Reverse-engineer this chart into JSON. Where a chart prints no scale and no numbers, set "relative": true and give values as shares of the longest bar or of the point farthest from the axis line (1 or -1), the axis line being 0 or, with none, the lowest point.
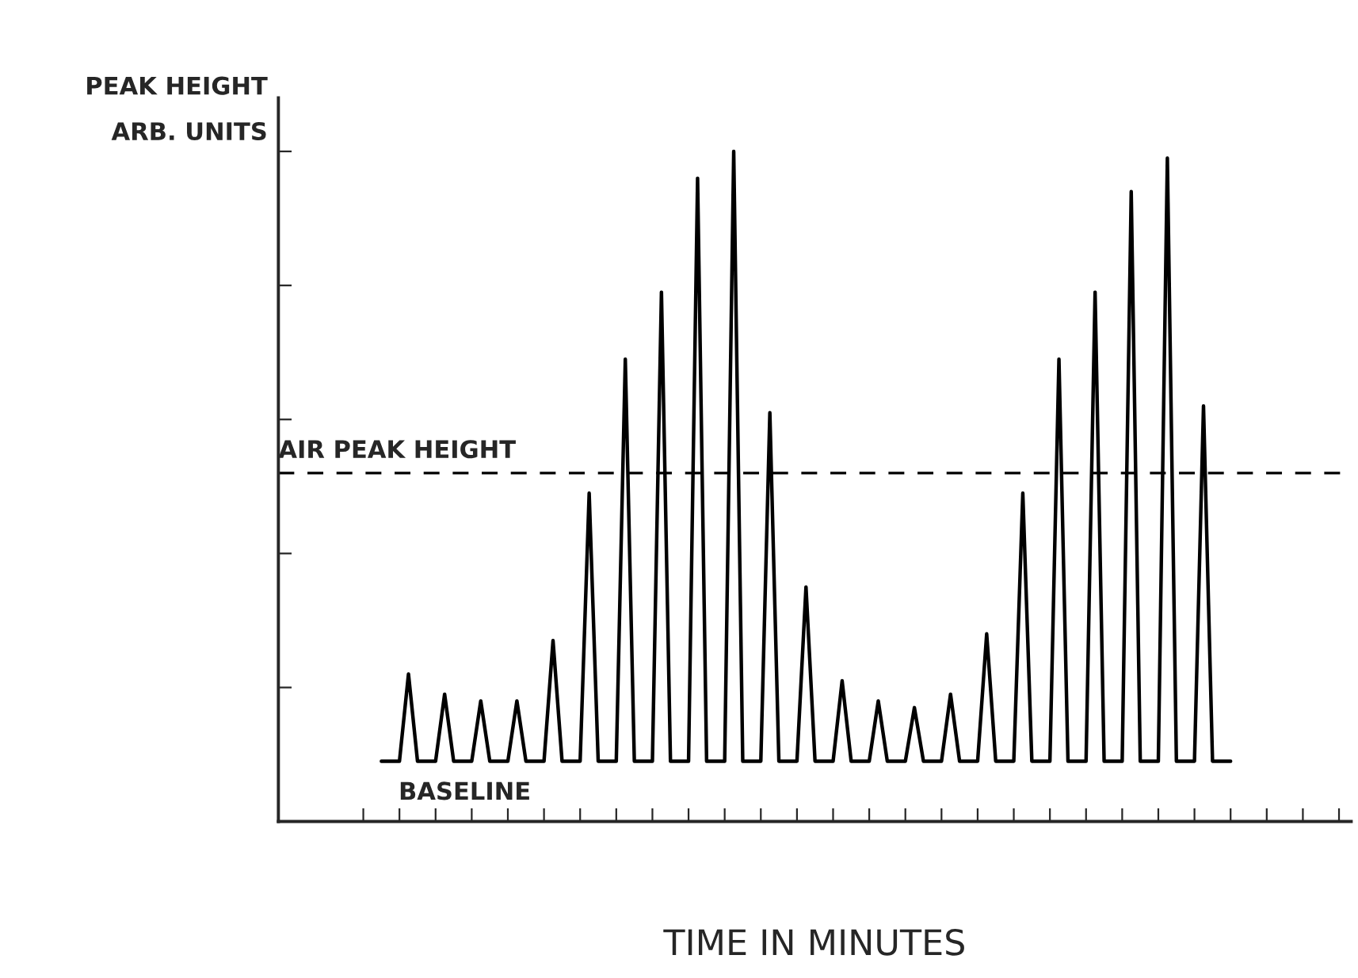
{
  "chart_data": {
    "type": "line",
    "relative": true,
    "xlabel": "TIME IN MINUTES",
    "ylabel": "PEAK HEIGHT\nARB. UNITS",
    "categories": [
      null,
      null,
      null,
      null,
      null,
      null,
      null,
      null,
      null,
      null,
      null,
      null,
      null,
      null,
      null,
      null,
      null,
      null,
      null,
      null,
      null,
      null,
      null,
      null,
      null,
      null,
      null,
      null,
      null,
      null,
      null,
      null,
      null,
      null,
      null,
      null,
      null,
      null,
      null,
      null,
      null,
      null,
      null,
      null,
      null,
      null,
      null,
      null,
      null,
      null,
      null,
      null,
      null,
      null,
      null,
      null,
      null,
      null,
      null,
      null,
      null,
      null,
      null,
      null,
      null,
      null,
      null,
      null,
      null,
      null,
      null,
      null,
      null,
      null,
      null,
      null,
      null,
      null,
      null,
      null,
      null,
      null,
      null,
      null,
      null,
      null,
      null,
      null,
      null,
      null,
      null,
      null,
      null,
      null,
      null
    ],
    "series": [
      {
        "color": "#000000",
        "values": [
          0.09,
          0.09,
          0.09,
          0.22,
          0.09,
          0.09,
          0.09,
          0.19,
          0.09,
          0.09,
          0.09,
          0.18,
          0.09,
          0.09,
          0.09,
          0.18,
          0.09,
          0.09,
          0.09,
          0.27,
          0.09,
          0.09,
          0.09,
          0.49,
          0.09,
          0.09,
          0.09,
          0.69,
          0.09,
          0.09,
          0.09,
          0.79,
          0.09,
          0.09,
          0.09,
          0.96,
          0.09,
          0.09,
          0.09,
          1.0,
          0.09,
          0.09,
          0.09,
          0.61,
          0.09,
          0.09,
          0.09,
          0.35,
          0.09,
          0.09,
          0.09,
          0.21,
          0.09,
          0.09,
          0.09,
          0.18,
          0.09,
          0.09,
          0.09,
          0.17,
          0.09,
          0.09,
          0.09,
          0.19,
          0.09,
          0.09,
          0.09,
          0.28,
          0.09,
          0.09,
          0.09,
          0.49,
          0.09,
          0.09,
          0.09,
          0.69,
          0.09,
          0.09,
          0.09,
          0.79,
          0.09,
          0.09,
          0.09,
          0.94,
          0.09,
          0.09,
          0.09,
          0.99,
          0.09,
          0.09,
          0.09,
          0.62,
          0.09,
          0.09,
          0.09
        ]
      }
    ],
    "ref_lines": [
      {
        "axis": "y",
        "value": 0.52,
        "label": "AIR PEAK HEIGHT",
        "color": "#000000",
        "line_style": "dashed"
      }
    ],
    "annotations": [
      "BASELINE"
    ],
    "grid": false,
    "legend": false,
    "line_style": "solid",
    "marker": "none"
  }
}
